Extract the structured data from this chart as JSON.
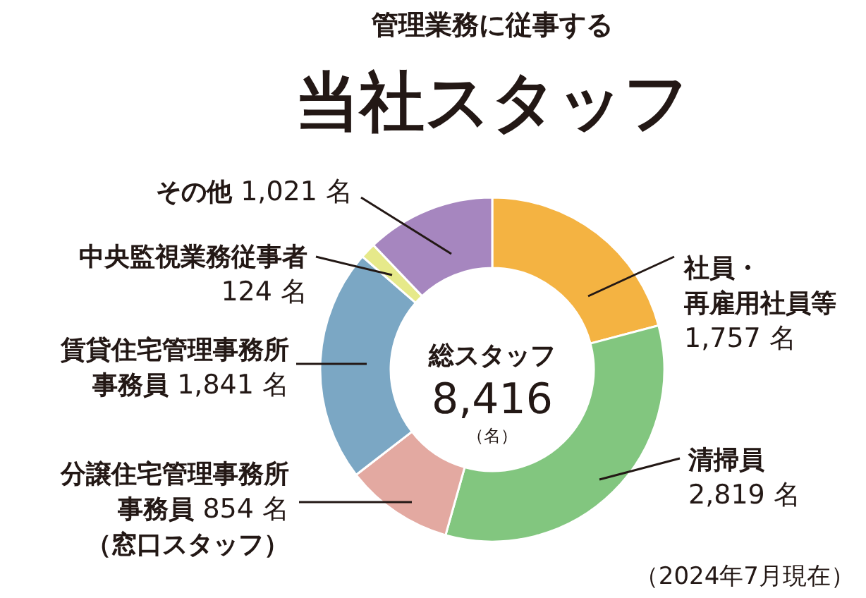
{
  "chart_data": {
    "type": "donut",
    "subtitle": "管理業務に従事する",
    "title": "当社スタッフ",
    "categories": [
      "社員・再雇用社員等",
      "清掃員",
      "分譲住宅管理事務所事務員",
      "賃貸住宅管理事務所事務員",
      "中央監視業務従事者",
      "その他"
    ],
    "values": [
      1757,
      2819,
      854,
      1841,
      124,
      1021
    ],
    "value_labels": [
      "1,757 名",
      "2,819 名",
      "854 名",
      "1,841 名",
      "124 名",
      "1,021 名"
    ],
    "colors": [
      "#f4b342",
      "#82c67f",
      "#e3a9a1",
      "#7ba7c4",
      "#e6e98a",
      "#a686bf"
    ],
    "annotations": [
      "（窓口スタッフ）",
      "総スタッフ",
      "8,416",
      "（名）",
      "（2024年7月現在）"
    ]
  }
}
